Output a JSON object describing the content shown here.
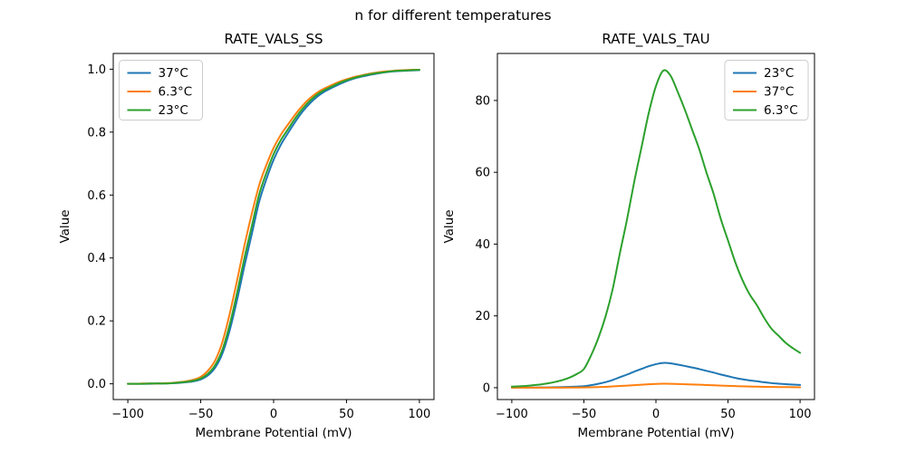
{
  "figure": {
    "title": "n for different temperatures"
  },
  "palette": {
    "blue": "#1f77b4",
    "orange": "#ff7f0e",
    "green": "#2ca02c",
    "legend_edge": "#cccccc",
    "axis": "#000000"
  },
  "chart_data": [
    {
      "type": "line",
      "title": "RATE_VALS_SS",
      "xlabel": "Membrane Potential (mV)",
      "ylabel": "Value",
      "xlim": [
        -110,
        110
      ],
      "ylim": [
        -0.05,
        1.05
      ],
      "grid": false,
      "xticks": {
        "values": [
          -100,
          -50,
          0,
          50,
          100
        ],
        "labels": [
          "−100",
          "−50",
          "0",
          "50",
          "100"
        ]
      },
      "yticks": {
        "values": [
          0.0,
          0.2,
          0.4,
          0.6,
          0.8,
          1.0
        ],
        "labels": [
          "0.0",
          "0.2",
          "0.4",
          "0.6",
          "0.8",
          "1.0"
        ]
      },
      "legend_position": "upper left",
      "x": [
        -100,
        -95,
        -90,
        -85,
        -80,
        -75,
        -70,
        -65,
        -60,
        -55,
        -50,
        -45,
        -40,
        -35,
        -30,
        -25,
        -20,
        -15,
        -10,
        -5,
        0,
        5,
        10,
        15,
        20,
        25,
        30,
        35,
        40,
        45,
        50,
        55,
        60,
        65,
        70,
        75,
        80,
        85,
        90,
        95,
        100
      ],
      "series": [
        {
          "name": "37°C",
          "color": "#1f77b4",
          "values": [
            0.0,
            0.0,
            0.0,
            0.0,
            0.001,
            0.001,
            0.002,
            0.003,
            0.005,
            0.008,
            0.014,
            0.027,
            0.052,
            0.098,
            0.172,
            0.268,
            0.375,
            0.475,
            0.577,
            0.65,
            0.712,
            0.76,
            0.798,
            0.834,
            0.866,
            0.892,
            0.913,
            0.929,
            0.941,
            0.952,
            0.962,
            0.97,
            0.976,
            0.981,
            0.985,
            0.989,
            0.992,
            0.994,
            0.995,
            0.996,
            0.997
          ]
        },
        {
          "name": "6.3°C",
          "color": "#ff7f0e",
          "values": [
            0.0,
            0.0,
            0.001,
            0.001,
            0.001,
            0.002,
            0.003,
            0.005,
            0.008,
            0.013,
            0.022,
            0.042,
            0.075,
            0.135,
            0.225,
            0.33,
            0.44,
            0.54,
            0.63,
            0.695,
            0.75,
            0.792,
            0.825,
            0.857,
            0.885,
            0.908,
            0.926,
            0.939,
            0.95,
            0.96,
            0.968,
            0.975,
            0.98,
            0.985,
            0.989,
            0.992,
            0.994,
            0.996,
            0.997,
            0.998,
            0.998
          ]
        },
        {
          "name": "23°C",
          "color": "#2ca02c",
          "values": [
            0.0,
            0.0,
            0.0,
            0.001,
            0.001,
            0.001,
            0.002,
            0.004,
            0.006,
            0.01,
            0.017,
            0.032,
            0.06,
            0.11,
            0.19,
            0.29,
            0.4,
            0.5,
            0.6,
            0.67,
            0.73,
            0.775,
            0.81,
            0.845,
            0.875,
            0.9,
            0.92,
            0.934,
            0.945,
            0.956,
            0.965,
            0.972,
            0.978,
            0.983,
            0.987,
            0.99,
            0.993,
            0.995,
            0.996,
            0.997,
            0.998
          ]
        }
      ]
    },
    {
      "type": "line",
      "title": "RATE_VALS_TAU",
      "xlabel": "Membrane Potential (mV)",
      "ylabel": "Value",
      "xlim": [
        -110,
        110
      ],
      "ylim": [
        -3.3,
        93.1
      ],
      "grid": false,
      "xticks": {
        "values": [
          -100,
          -50,
          0,
          50,
          100
        ],
        "labels": [
          "−100",
          "−50",
          "0",
          "50",
          "100"
        ]
      },
      "yticks": {
        "values": [
          0,
          20,
          40,
          60,
          80
        ],
        "labels": [
          "0",
          "20",
          "40",
          "60",
          "80"
        ]
      },
      "legend_position": "upper right",
      "x": [
        -100,
        -95,
        -90,
        -85,
        -80,
        -75,
        -70,
        -65,
        -60,
        -55,
        -50,
        -45,
        -40,
        -35,
        -30,
        -25,
        -20,
        -15,
        -10,
        -5,
        0,
        5,
        10,
        15,
        20,
        25,
        30,
        35,
        40,
        45,
        50,
        55,
        60,
        65,
        70,
        75,
        80,
        85,
        90,
        95,
        100
      ],
      "series": [
        {
          "name": "23°C",
          "color": "#1f77b4",
          "values": [
            0.02,
            0.03,
            0.04,
            0.05,
            0.07,
            0.09,
            0.13,
            0.16,
            0.22,
            0.3,
            0.41,
            0.7,
            1.08,
            1.55,
            2.15,
            2.93,
            3.67,
            4.49,
            5.23,
            5.98,
            6.56,
            6.9,
            6.8,
            6.45,
            6.05,
            5.63,
            5.2,
            4.69,
            4.22,
            3.67,
            3.2,
            2.73,
            2.34,
            2.03,
            1.8,
            1.52,
            1.29,
            1.13,
            0.98,
            0.86,
            0.76
          ]
        },
        {
          "name": "37°C",
          "color": "#ff7f0e",
          "values": [
            0.004,
            0.005,
            0.006,
            0.009,
            0.011,
            0.015,
            0.02,
            0.026,
            0.035,
            0.048,
            0.065,
            0.113,
            0.173,
            0.248,
            0.344,
            0.469,
            0.588,
            0.719,
            0.838,
            0.956,
            1.05,
            1.1,
            1.09,
            1.03,
            0.97,
            0.9,
            0.83,
            0.75,
            0.68,
            0.59,
            0.51,
            0.44,
            0.38,
            0.33,
            0.29,
            0.24,
            0.21,
            0.18,
            0.16,
            0.14,
            0.12
          ]
        },
        {
          "name": "6.3°C",
          "color": "#2ca02c",
          "values": [
            0.3,
            0.4,
            0.5,
            0.7,
            0.9,
            1.2,
            1.6,
            2.1,
            2.8,
            3.8,
            5.2,
            9.0,
            13.8,
            19.8,
            27.5,
            37.5,
            47.0,
            57.5,
            67.0,
            76.5,
            84.0,
            88.3,
            87.0,
            82.5,
            77.5,
            72.0,
            66.5,
            60.0,
            54.0,
            47.0,
            41.0,
            35.0,
            30.0,
            26.0,
            23.0,
            19.5,
            16.5,
            14.5,
            12.5,
            11.0,
            9.7
          ]
        }
      ]
    }
  ]
}
